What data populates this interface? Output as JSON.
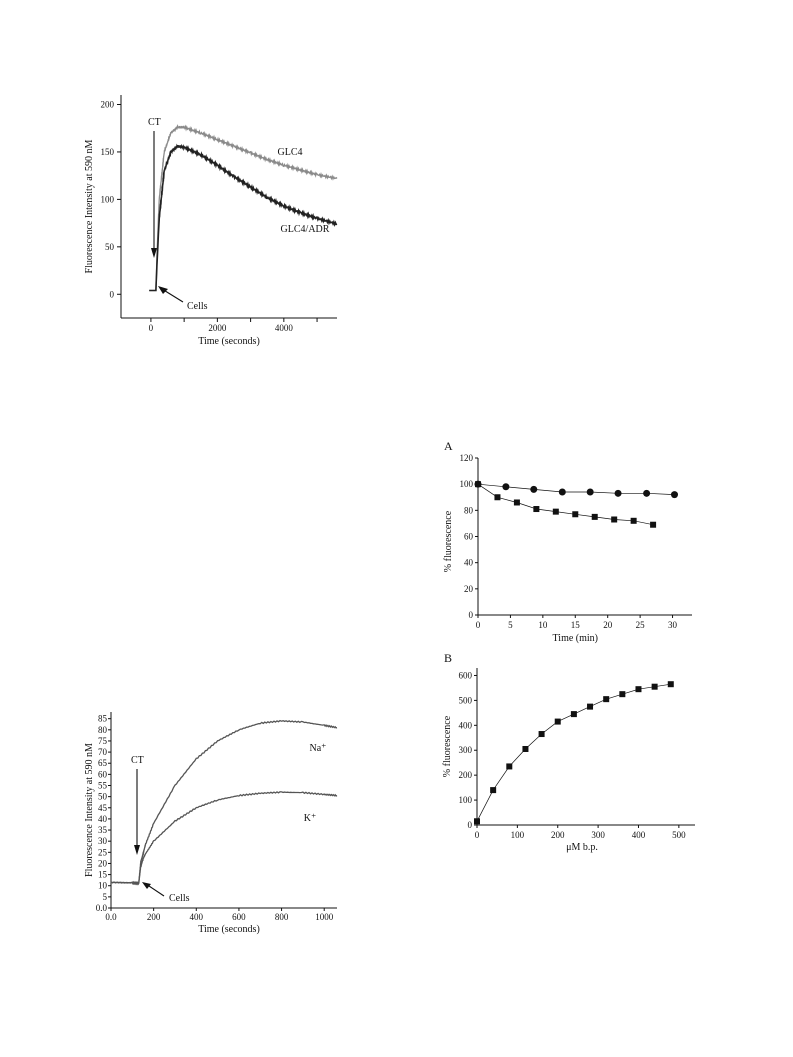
{
  "chart_data": [
    {
      "id": "fig1",
      "type": "line",
      "title": "",
      "xlabel": "Time (seconds)",
      "ylabel": "Fluorescence Intensity at 590 nM",
      "xlim": [
        -900,
        5600
      ],
      "ylim": [
        -25,
        210
      ],
      "xticks": [
        0,
        2000,
        4000
      ],
      "yticks": [
        0,
        50,
        100,
        150,
        200
      ],
      "annotations": [
        "CT",
        "Cells"
      ],
      "series": [
        {
          "name": "GLC4",
          "color": "#8a8a8a",
          "x": [
            -50,
            150,
            180,
            250,
            400,
            600,
            800,
            1000,
            1500,
            2000,
            2500,
            3000,
            3500,
            4000,
            4500,
            5000,
            5600
          ],
          "y": [
            4,
            4,
            40,
            100,
            150,
            170,
            176,
            176,
            170,
            163,
            156,
            149,
            142,
            136,
            131,
            126,
            122
          ]
        },
        {
          "name": "GLC4/ADR",
          "color": "#222222",
          "x": [
            -50,
            150,
            180,
            250,
            400,
            600,
            800,
            1000,
            1500,
            2000,
            2500,
            3000,
            3500,
            4000,
            4500,
            5000,
            5600
          ],
          "y": [
            4,
            4,
            30,
            80,
            130,
            150,
            156,
            155,
            147,
            136,
            124,
            113,
            102,
            93,
            86,
            80,
            74
          ]
        }
      ]
    },
    {
      "id": "fig2",
      "type": "line",
      "title": "",
      "xlabel": "Time (seconds)",
      "ylabel": "Fluorescence Intensity at 590 nM",
      "xlim": [
        0,
        1060
      ],
      "ylim": [
        0,
        88
      ],
      "xticks": [
        0,
        200,
        400,
        600,
        800,
        1000
      ],
      "xticklabels": [
        "0.0",
        "200",
        "400",
        "600",
        "800",
        "1000"
      ],
      "yticks": [
        0,
        5,
        10,
        15,
        20,
        25,
        30,
        35,
        40,
        45,
        50,
        55,
        60,
        65,
        70,
        75,
        80,
        85
      ],
      "yticklabels": [
        "0.0",
        "5",
        "10",
        "15",
        "20",
        "25",
        "30",
        "35",
        "40",
        "45",
        "50",
        "55",
        "60",
        "65",
        "70",
        "75",
        "80",
        "85"
      ],
      "annotations": [
        "CT",
        "Cells"
      ],
      "series": [
        {
          "name": "Na⁺",
          "color": "#555555",
          "x": [
            0,
            100,
            130,
            140,
            150,
            160,
            200,
            300,
            400,
            500,
            600,
            700,
            800,
            900,
            1000,
            1060
          ],
          "y": [
            11.5,
            11.3,
            11,
            21,
            24,
            28,
            38,
            55,
            67,
            75,
            80,
            83,
            84,
            83.5,
            82,
            81
          ]
        },
        {
          "name": "K⁺",
          "color": "#555555",
          "x": [
            0,
            100,
            130,
            140,
            150,
            160,
            200,
            300,
            400,
            500,
            600,
            700,
            800,
            900,
            1000,
            1060
          ],
          "y": [
            11.5,
            11.3,
            11,
            19,
            22,
            24,
            30,
            39,
            45,
            48.5,
            50.5,
            51.5,
            52,
            51.8,
            51,
            50.5
          ]
        }
      ]
    },
    {
      "id": "figA",
      "type": "line",
      "title": "A",
      "xlabel": "Time (min)",
      "ylabel": "% fluorescence",
      "xlim": [
        0,
        33
      ],
      "ylim": [
        0,
        120
      ],
      "xticks": [
        0,
        5,
        10,
        15,
        20,
        25,
        30
      ],
      "yticks": [
        0,
        20,
        40,
        60,
        80,
        100,
        120
      ],
      "series": [
        {
          "marker": "circle",
          "x": [
            0,
            4.3,
            8.6,
            13,
            17.3,
            21.6,
            26,
            30.3
          ],
          "y": [
            100,
            98,
            96,
            94,
            94,
            93,
            93,
            92
          ]
        },
        {
          "marker": "square",
          "x": [
            0,
            3,
            6,
            9,
            12,
            15,
            18,
            21,
            24,
            27
          ],
          "y": [
            100,
            90,
            86,
            81,
            79,
            77,
            75,
            73,
            72,
            69
          ]
        }
      ]
    },
    {
      "id": "figB",
      "type": "line",
      "title": "B",
      "xlabel": "μM b.p.",
      "ylabel": "% fluorescence",
      "xlim": [
        0,
        540
      ],
      "ylim": [
        0,
        630
      ],
      "xticks": [
        0,
        100,
        200,
        300,
        400,
        500
      ],
      "yticks": [
        0,
        100,
        200,
        300,
        400,
        500,
        600
      ],
      "series": [
        {
          "marker": "square",
          "x": [
            0,
            40,
            80,
            120,
            160,
            200,
            240,
            280,
            320,
            360,
            400,
            440,
            480
          ],
          "y": [
            15,
            140,
            235,
            305,
            365,
            415,
            445,
            475,
            505,
            525,
            545,
            555,
            565
          ]
        }
      ]
    }
  ]
}
